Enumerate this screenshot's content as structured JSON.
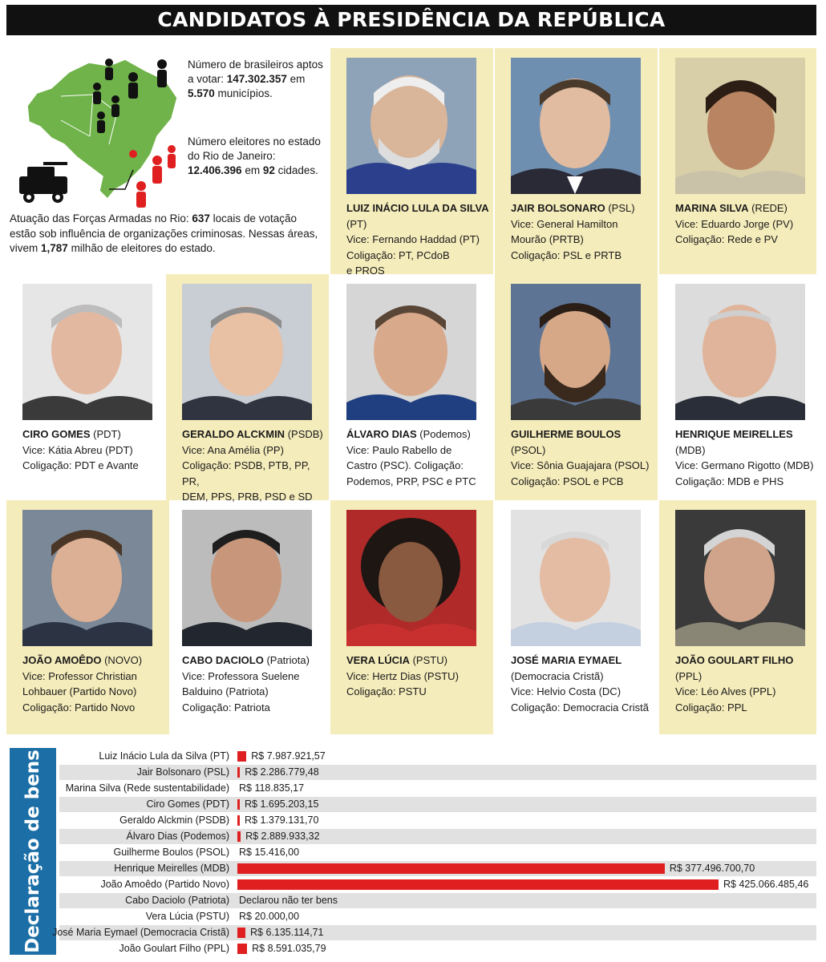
{
  "header": {
    "title": "CANDIDATOS À PRESIDÊNCIA DA REPÚBLICA"
  },
  "info": {
    "voters_pre": "Número de brasileiros aptos a votar: ",
    "voters_count": "147.302.357",
    "voters_mid": " em ",
    "voters_munis": "5.570",
    "voters_post": " municípios.",
    "rj_pre": "Número eleitores no estado do Rio de Janeiro: ",
    "rj_count": "12.406.396",
    "rj_mid": " em ",
    "rj_cities": "92",
    "rj_post": " cidades.",
    "army_pre": "Atuação das Forças Armadas no Rio: ",
    "army_locals": "637",
    "army_mid": " locais de votação estão sob influência de organizações criminosas. Nessas áreas, vivem ",
    "army_people": "1,787",
    "army_post": " milhão de eleitores do estado."
  },
  "colors": {
    "title_bg": "#111111",
    "card_bg": "#f5ecbb",
    "bar": "#e02020",
    "label_bg": "#1c6fa6",
    "row_shade": "#e1e1e1"
  },
  "candidates": [
    {
      "name": "LUIZ INÁCIO LULA DA SILVA",
      "party": " (PT)",
      "lines": [
        "Vice: Fernando Haddad (PT)",
        "Coligação: PT, PCdoB",
        "e PROS"
      ]
    },
    {
      "name": "JAIR BOLSONARO",
      "party": " (PSL)",
      "lines": [
        "Vice: General Hamilton",
        "Mourão (PRTB)",
        "Coligação: PSL e PRTB"
      ]
    },
    {
      "name": "MARINA SILVA",
      "party": " (REDE)",
      "lines": [
        "Vice: Eduardo Jorge (PV)",
        "Coligação: Rede e PV",
        ""
      ]
    },
    {
      "name": "CIRO GOMES",
      "party": " (PDT)",
      "lines": [
        "Vice: Kátia Abreu (PDT)",
        "Coligação: PDT e Avante",
        ""
      ]
    },
    {
      "name": "GERALDO ALCKMIN",
      "party": " (PSDB)",
      "lines": [
        "Vice: Ana Amélia (PP)",
        "Coligação: PSDB, PTB, PP, PR,",
        "DEM, PPS, PRB, PSD e SD"
      ]
    },
    {
      "name": "ÁLVARO DIAS",
      "party": " (Podemos)",
      "lines": [
        "Vice: Paulo Rabello de",
        "Castro (PSC). Coligação:",
        "Podemos, PRP, PSC e PTC"
      ]
    },
    {
      "name": "GUILHERME BOULOS",
      "party": " (PSOL)",
      "lines": [
        "Vice: Sônia Guajajara (PSOL)",
        "Coligação: PSOL e PCB",
        ""
      ]
    },
    {
      "name": "HENRIQUE MEIRELLES",
      "party": " (MDB)",
      "lines": [
        "Vice: Germano Rigotto (MDB)",
        "Coligação: MDB e PHS",
        ""
      ]
    },
    {
      "name": "JOÃO AMOÊDO",
      "party": " (NOVO)",
      "lines": [
        "Vice: Professor Christian",
        "Lohbauer (Partido Novo)",
        "Coligação: Partido Novo"
      ]
    },
    {
      "name": "CABO DACIOLO",
      "party": " (Patriota)",
      "lines": [
        "Vice: Professora Suelene",
        "Balduino (Patriota)",
        "Coligação: Patriota"
      ]
    },
    {
      "name": "VERA LÚCIA",
      "party": " (PSTU)",
      "lines": [
        "Vice: Hertz Dias (PSTU)",
        "Coligação: PSTU",
        ""
      ]
    },
    {
      "name": "JOSÉ MARIA EYMAEL",
      "party": "",
      "lines": [
        "(Democracia Cristã)",
        "Vice: Helvio Costa (DC)",
        "Coligação: Democracia Cristã"
      ]
    },
    {
      "name": "JOÃO GOULART FILHO",
      "party": " (PPL)",
      "lines": [
        "Vice: Léo Alves (PPL)",
        "Coligação: PPL",
        ""
      ]
    }
  ],
  "assets": {
    "label": "Declaração de bens",
    "rows": [
      {
        "candidate": "Luiz Inácio Lula da Silva (PT)",
        "value": 7987921.57,
        "label": "R$ 7.987.921,57"
      },
      {
        "candidate": "Jair Bolsonaro (PSL)",
        "value": 2286779.48,
        "label": "R$ 2.286.779,48"
      },
      {
        "candidate": "Marina Silva (Rede sustentabilidade)",
        "value": 118835.17,
        "label": "R$ 118.835,17"
      },
      {
        "candidate": "Ciro Gomes (PDT)",
        "value": 1695203.15,
        "label": "R$ 1.695.203,15"
      },
      {
        "candidate": "Geraldo Alckmin (PSDB)",
        "value": 1379131.7,
        "label": "R$ 1.379.131,70"
      },
      {
        "candidate": "Álvaro Dias (Podemos)",
        "value": 2889933.32,
        "label": "R$ 2.889.933,32"
      },
      {
        "candidate": "Guilherme Boulos (PSOL)",
        "value": 15416.0,
        "label": "R$ 15.416,00"
      },
      {
        "candidate": "Henrique Meirelles (MDB)",
        "value": 377496700.7,
        "label": "R$ 377.496.700,70"
      },
      {
        "candidate": "João Amoêdo (Partido Novo)",
        "value": 425066485.46,
        "label": "R$ 425.066.485,46"
      },
      {
        "candidate": "Cabo Daciolo  (Patriota)",
        "value": 0,
        "label": "Declarou não ter bens"
      },
      {
        "candidate": "Vera Lúcia (PSTU)",
        "value": 20000.0,
        "label": "R$ 20.000,00"
      },
      {
        "candidate": "José Maria Eymael (Democracia Cristã)",
        "value": 6135114.71,
        "label": "R$ 6.135.114,71"
      },
      {
        "candidate": "João Goulart Filho (PPL)",
        "value": 8591035.79,
        "label": "R$ 8.591.035,79"
      }
    ]
  }
}
